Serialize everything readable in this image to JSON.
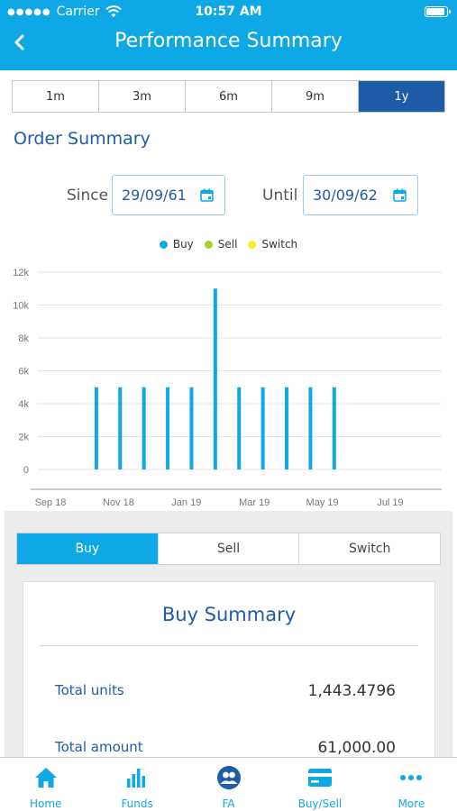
{
  "status_bar": {
    "carrier": "Carrier",
    "time": "10:57 AM"
  },
  "header": {
    "title": "Performance Summary"
  },
  "range_tabs": [
    {
      "label": "1m",
      "active": false
    },
    {
      "label": "3m",
      "active": false
    },
    {
      "label": "6m",
      "active": false
    },
    {
      "label": "9m",
      "active": false
    },
    {
      "label": "1y",
      "active": true
    }
  ],
  "order_summary": {
    "title": "Order Summary",
    "since_label": "Since",
    "since_value": "29/09/61",
    "until_label": "Until",
    "until_value": "30/09/62"
  },
  "legend": [
    {
      "label": "Buy",
      "color": "#0fa8e7"
    },
    {
      "label": "Sell",
      "color": "#a4d32b"
    },
    {
      "label": "Switch",
      "color": "#f5ee28"
    }
  ],
  "chart_data": {
    "type": "bar",
    "y_ticks": [
      "0",
      "2k",
      "4k",
      "6k",
      "8k",
      "10k",
      "12k"
    ],
    "ylim": [
      0,
      12000
    ],
    "x_ticks": [
      {
        "label": "Sep 18",
        "pos": 0
      },
      {
        "label": "Nov 18",
        "pos": 2
      },
      {
        "label": "Jan 19",
        "pos": 4
      },
      {
        "label": "Mar 19",
        "pos": 6
      },
      {
        "label": "May 19",
        "pos": 8
      },
      {
        "label": "Jul 19",
        "pos": 10
      }
    ],
    "xlim": [
      0,
      11.5
    ],
    "grid": true,
    "series": [
      {
        "name": "Buy",
        "color": "#0fa8e7",
        "points": [
          {
            "x": 1.35,
            "y": 5000
          },
          {
            "x": 2.05,
            "y": 5000
          },
          {
            "x": 2.75,
            "y": 5000
          },
          {
            "x": 3.45,
            "y": 5000
          },
          {
            "x": 4.15,
            "y": 5000
          },
          {
            "x": 4.85,
            "y": 11000
          },
          {
            "x": 5.55,
            "y": 5000
          },
          {
            "x": 6.25,
            "y": 5000
          },
          {
            "x": 6.95,
            "y": 5000
          },
          {
            "x": 7.65,
            "y": 5000
          },
          {
            "x": 8.35,
            "y": 5000
          }
        ]
      }
    ]
  },
  "type_tabs": [
    {
      "label": "Buy",
      "active": true
    },
    {
      "label": "Sell",
      "active": false
    },
    {
      "label": "Switch",
      "active": false
    }
  ],
  "buy_summary": {
    "title": "Buy Summary",
    "rows": [
      {
        "label": "Total units",
        "value": "1,443.4796"
      },
      {
        "label": "Total amount",
        "value": "61,000.00"
      }
    ]
  },
  "tabbar": [
    {
      "label": "Home",
      "icon": "home-icon"
    },
    {
      "label": "Funds",
      "icon": "bar-chart-icon"
    },
    {
      "label": "FA",
      "icon": "people-icon"
    },
    {
      "label": "Buy/Sell",
      "icon": "card-icon"
    },
    {
      "label": "More",
      "icon": "more-icon"
    }
  ]
}
